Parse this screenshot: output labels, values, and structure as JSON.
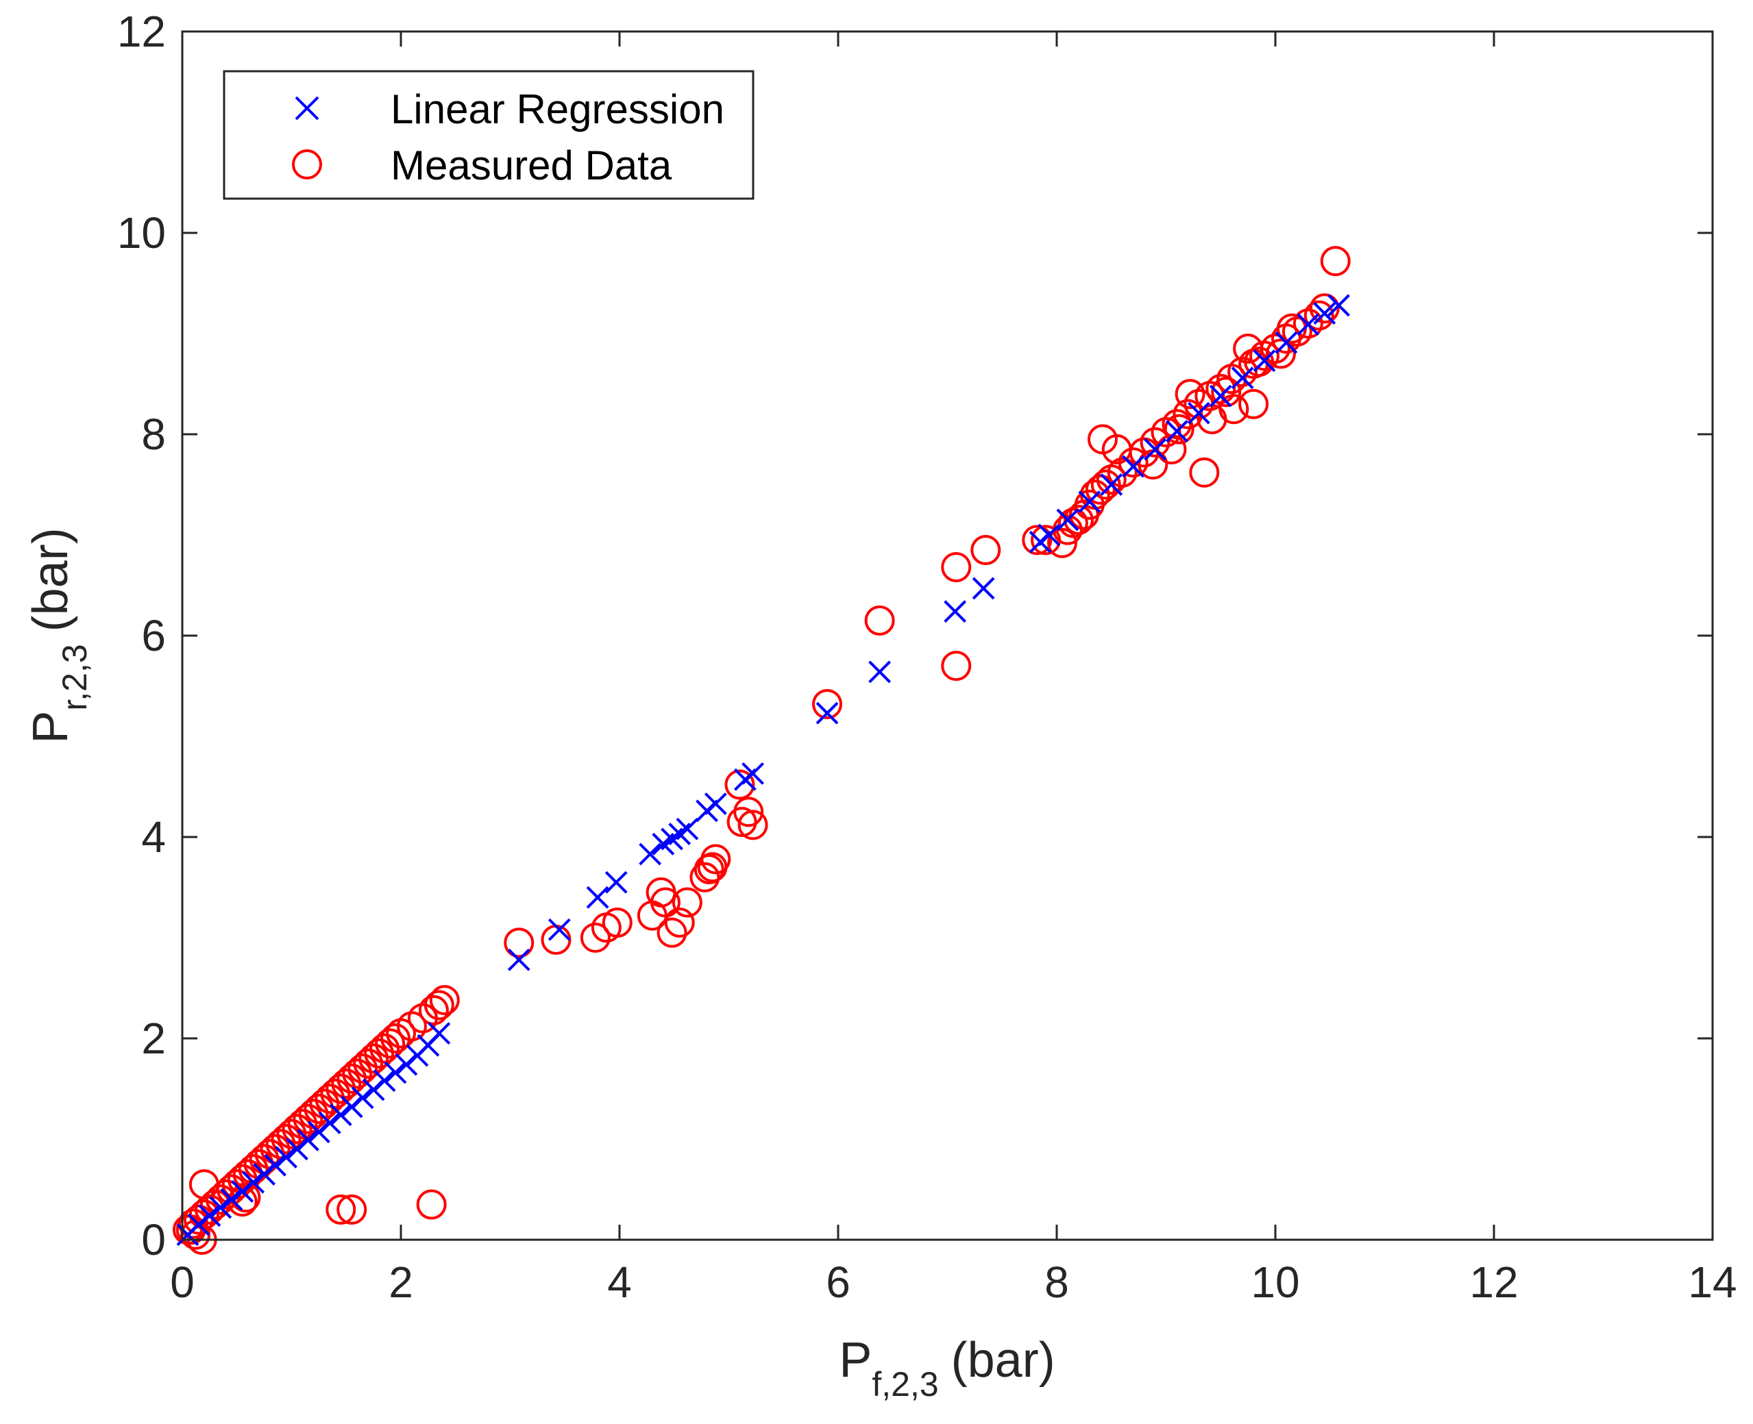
{
  "chart_data": {
    "type": "scatter",
    "title": "",
    "xlabel": {
      "main": "P",
      "sub": "f,2,3",
      "unit": "(bar)"
    },
    "ylabel": {
      "main": "P",
      "sub": "r,2,3",
      "unit": "(bar)"
    },
    "xlim": [
      0,
      14
    ],
    "ylim": [
      0,
      12
    ],
    "xticks": [
      0,
      2,
      4,
      6,
      8,
      10,
      12,
      14
    ],
    "yticks": [
      0,
      2,
      4,
      6,
      8,
      10,
      12
    ],
    "grid": false,
    "legend_position": "top-left",
    "series": [
      {
        "name": "Linear Regression",
        "marker": "x",
        "color": "#0000ff",
        "x": [
          0.05,
          0.15,
          0.25,
          0.35,
          0.45,
          0.55,
          0.65,
          0.75,
          0.85,
          0.95,
          1.05,
          1.15,
          1.25,
          1.35,
          1.45,
          1.55,
          1.65,
          1.75,
          1.85,
          1.95,
          2.05,
          2.15,
          2.25,
          2.35,
          3.08,
          3.45,
          3.8,
          3.97,
          4.28,
          4.4,
          4.48,
          4.55,
          4.62,
          4.8,
          4.88,
          5.15,
          5.22,
          5.9,
          6.38,
          7.07,
          7.33,
          7.85,
          7.93,
          8.1,
          8.3,
          8.5,
          8.7,
          8.9,
          9.1,
          9.3,
          9.5,
          9.7,
          9.9,
          10.1,
          10.3,
          10.45,
          10.58
        ],
        "y": [
          0.05,
          0.15,
          0.24,
          0.32,
          0.4,
          0.48,
          0.57,
          0.65,
          0.74,
          0.82,
          0.9,
          0.99,
          1.07,
          1.16,
          1.24,
          1.32,
          1.41,
          1.49,
          1.58,
          1.66,
          1.74,
          1.83,
          1.93,
          2.05,
          2.78,
          3.08,
          3.4,
          3.55,
          3.83,
          3.93,
          3.98,
          4.03,
          4.08,
          4.26,
          4.33,
          4.57,
          4.63,
          5.23,
          5.64,
          6.24,
          6.47,
          6.93,
          7.0,
          7.15,
          7.33,
          7.5,
          7.68,
          7.85,
          8.03,
          8.21,
          8.38,
          8.56,
          8.73,
          8.91,
          9.09,
          9.2,
          9.28
        ]
      },
      {
        "name": "Measured Data",
        "marker": "o",
        "color": "#ff0000",
        "x": [
          0.05,
          0.1,
          0.15,
          0.2,
          0.25,
          0.3,
          0.35,
          0.4,
          0.45,
          0.5,
          0.55,
          0.6,
          0.65,
          0.7,
          0.75,
          0.8,
          0.85,
          0.9,
          0.95,
          1.0,
          1.05,
          1.1,
          1.15,
          1.2,
          1.25,
          1.3,
          1.35,
          1.4,
          1.45,
          1.5,
          1.55,
          1.6,
          1.65,
          1.7,
          1.75,
          1.8,
          1.85,
          1.9,
          1.95,
          2.0,
          2.1,
          2.2,
          2.3,
          2.35,
          2.4,
          0.2,
          0.08,
          0.12,
          0.18,
          0.55,
          0.58,
          1.45,
          1.55,
          2.28,
          3.08,
          3.42,
          3.78,
          3.88,
          3.98,
          4.3,
          4.38,
          4.42,
          4.48,
          4.55,
          4.62,
          4.78,
          4.82,
          4.85,
          4.88,
          5.1,
          5.12,
          5.18,
          5.22,
          5.9,
          6.38,
          7.08,
          7.08,
          7.35,
          7.82,
          7.9,
          8.05,
          8.1,
          8.15,
          8.2,
          8.25,
          8.3,
          8.35,
          8.4,
          8.45,
          8.5,
          8.6,
          8.7,
          8.8,
          8.9,
          9.0,
          9.1,
          9.2,
          9.3,
          9.4,
          9.5,
          9.6,
          9.7,
          9.8,
          9.9,
          10.0,
          10.1,
          10.2,
          10.3,
          10.4,
          10.45,
          8.42,
          8.88,
          9.05,
          9.12,
          9.35,
          9.42,
          9.55,
          9.62,
          9.75,
          9.85,
          9.8,
          10.05,
          10.15,
          8.25,
          8.55,
          9.22,
          10.55
        ],
        "y": [
          0.1,
          0.16,
          0.2,
          0.25,
          0.3,
          0.35,
          0.4,
          0.45,
          0.5,
          0.55,
          0.6,
          0.65,
          0.7,
          0.75,
          0.8,
          0.85,
          0.9,
          0.95,
          1.0,
          1.05,
          1.1,
          1.15,
          1.2,
          1.25,
          1.3,
          1.35,
          1.4,
          1.45,
          1.5,
          1.55,
          1.6,
          1.65,
          1.7,
          1.75,
          1.8,
          1.85,
          1.9,
          1.95,
          2.0,
          2.05,
          2.12,
          2.2,
          2.28,
          2.33,
          2.38,
          0.55,
          0.1,
          0.05,
          0.0,
          0.38,
          0.42,
          0.3,
          0.3,
          0.35,
          2.95,
          2.98,
          3.0,
          3.1,
          3.15,
          3.22,
          3.45,
          3.35,
          3.05,
          3.15,
          3.35,
          3.6,
          3.68,
          3.7,
          3.78,
          4.52,
          4.15,
          4.25,
          4.12,
          5.32,
          6.15,
          6.68,
          5.7,
          6.85,
          6.95,
          6.95,
          6.92,
          7.05,
          7.12,
          7.15,
          7.2,
          7.3,
          7.4,
          7.45,
          7.5,
          7.55,
          7.62,
          7.72,
          7.82,
          7.92,
          8.02,
          8.1,
          8.2,
          8.3,
          8.38,
          8.45,
          8.55,
          8.62,
          8.7,
          8.78,
          8.85,
          8.95,
          9.02,
          9.1,
          9.18,
          9.25,
          7.95,
          7.7,
          7.85,
          8.05,
          7.62,
          8.15,
          8.42,
          8.25,
          8.85,
          8.72,
          8.3,
          8.8,
          9.05,
          7.2,
          7.85,
          8.4,
          9.72
        ]
      }
    ]
  }
}
